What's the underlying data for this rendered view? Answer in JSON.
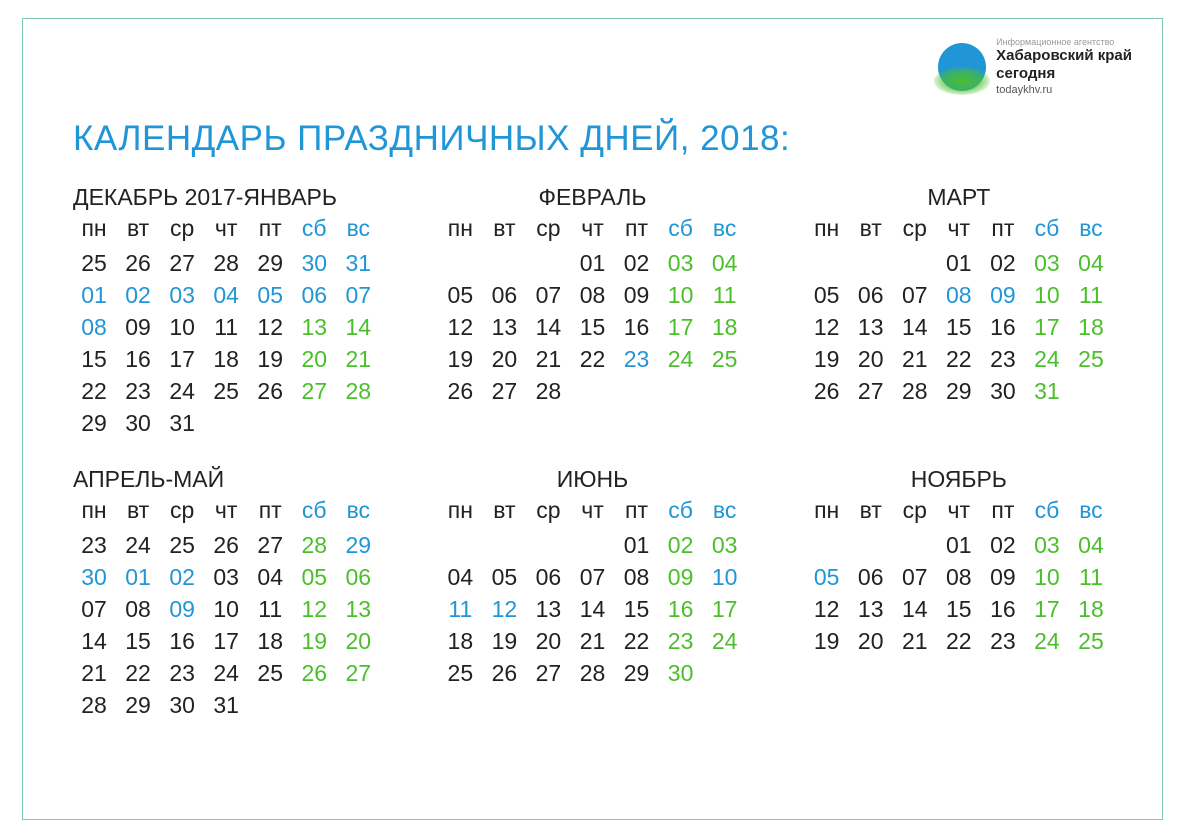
{
  "logo": {
    "agency": "Информационное агентство",
    "name_line1": "Хабаровский край",
    "name_line2": "сегодня",
    "url": "todaykhv.ru"
  },
  "title": "КАЛЕНДАРЬ ПРАЗДНИЧНЫХ ДНЕЙ, 2018:",
  "weekdays": [
    "пн",
    "вт",
    "ср",
    "чт",
    "пт",
    "сб",
    "вс"
  ],
  "colors": {
    "title": "#2196d6",
    "holiday": "#2196d6",
    "weekend": "#4bbf2b",
    "normal": "#222222",
    "border": "#7ec8b8",
    "background": "#ffffff"
  },
  "months": [
    {
      "name": "ДЕКАБРЬ 2017-ЯНВАРЬ",
      "align": "left",
      "cells": [
        {
          "v": "25",
          "t": "n"
        },
        {
          "v": "26",
          "t": "n"
        },
        {
          "v": "27",
          "t": "n"
        },
        {
          "v": "28",
          "t": "n"
        },
        {
          "v": "29",
          "t": "n"
        },
        {
          "v": "30",
          "t": "h"
        },
        {
          "v": "31",
          "t": "h"
        },
        {
          "v": "01",
          "t": "h"
        },
        {
          "v": "02",
          "t": "h"
        },
        {
          "v": "03",
          "t": "h"
        },
        {
          "v": "04",
          "t": "h"
        },
        {
          "v": "05",
          "t": "h"
        },
        {
          "v": "06",
          "t": "h"
        },
        {
          "v": "07",
          "t": "h"
        },
        {
          "v": "08",
          "t": "h"
        },
        {
          "v": "09",
          "t": "n"
        },
        {
          "v": "10",
          "t": "n"
        },
        {
          "v": "11",
          "t": "n"
        },
        {
          "v": "12",
          "t": "n"
        },
        {
          "v": "13",
          "t": "w"
        },
        {
          "v": "14",
          "t": "w"
        },
        {
          "v": "15",
          "t": "n"
        },
        {
          "v": "16",
          "t": "n"
        },
        {
          "v": "17",
          "t": "n"
        },
        {
          "v": "18",
          "t": "n"
        },
        {
          "v": "19",
          "t": "n"
        },
        {
          "v": "20",
          "t": "w"
        },
        {
          "v": "21",
          "t": "w"
        },
        {
          "v": "22",
          "t": "n"
        },
        {
          "v": "23",
          "t": "n"
        },
        {
          "v": "24",
          "t": "n"
        },
        {
          "v": "25",
          "t": "n"
        },
        {
          "v": "26",
          "t": "n"
        },
        {
          "v": "27",
          "t": "w"
        },
        {
          "v": "28",
          "t": "w"
        },
        {
          "v": "29",
          "t": "n"
        },
        {
          "v": "30",
          "t": "n"
        },
        {
          "v": "31",
          "t": "n"
        }
      ]
    },
    {
      "name": "ФЕВРАЛЬ",
      "align": "center",
      "cells": [
        {
          "v": "",
          "t": "e"
        },
        {
          "v": "",
          "t": "e"
        },
        {
          "v": "",
          "t": "e"
        },
        {
          "v": "01",
          "t": "n"
        },
        {
          "v": "02",
          "t": "n"
        },
        {
          "v": "03",
          "t": "w"
        },
        {
          "v": "04",
          "t": "w"
        },
        {
          "v": "05",
          "t": "n"
        },
        {
          "v": "06",
          "t": "n"
        },
        {
          "v": "07",
          "t": "n"
        },
        {
          "v": "08",
          "t": "n"
        },
        {
          "v": "09",
          "t": "n"
        },
        {
          "v": "10",
          "t": "w"
        },
        {
          "v": "11",
          "t": "w"
        },
        {
          "v": "12",
          "t": "n"
        },
        {
          "v": "13",
          "t": "n"
        },
        {
          "v": "14",
          "t": "n"
        },
        {
          "v": "15",
          "t": "n"
        },
        {
          "v": "16",
          "t": "n"
        },
        {
          "v": "17",
          "t": "w"
        },
        {
          "v": "18",
          "t": "w"
        },
        {
          "v": "19",
          "t": "n"
        },
        {
          "v": "20",
          "t": "n"
        },
        {
          "v": "21",
          "t": "n"
        },
        {
          "v": "22",
          "t": "n"
        },
        {
          "v": "23",
          "t": "h"
        },
        {
          "v": "24",
          "t": "w"
        },
        {
          "v": "25",
          "t": "w"
        },
        {
          "v": "26",
          "t": "n"
        },
        {
          "v": "27",
          "t": "n"
        },
        {
          "v": "28",
          "t": "n"
        }
      ]
    },
    {
      "name": "МАРТ",
      "align": "center",
      "cells": [
        {
          "v": "",
          "t": "e"
        },
        {
          "v": "",
          "t": "e"
        },
        {
          "v": "",
          "t": "e"
        },
        {
          "v": "01",
          "t": "n"
        },
        {
          "v": "02",
          "t": "n"
        },
        {
          "v": "03",
          "t": "w"
        },
        {
          "v": "04",
          "t": "w"
        },
        {
          "v": "05",
          "t": "n"
        },
        {
          "v": "06",
          "t": "n"
        },
        {
          "v": "07",
          "t": "n"
        },
        {
          "v": "08",
          "t": "h"
        },
        {
          "v": "09",
          "t": "h"
        },
        {
          "v": "10",
          "t": "w"
        },
        {
          "v": "11",
          "t": "w"
        },
        {
          "v": "12",
          "t": "n"
        },
        {
          "v": "13",
          "t": "n"
        },
        {
          "v": "14",
          "t": "n"
        },
        {
          "v": "15",
          "t": "n"
        },
        {
          "v": "16",
          "t": "n"
        },
        {
          "v": "17",
          "t": "w"
        },
        {
          "v": "18",
          "t": "w"
        },
        {
          "v": "19",
          "t": "n"
        },
        {
          "v": "20",
          "t": "n"
        },
        {
          "v": "21",
          "t": "n"
        },
        {
          "v": "22",
          "t": "n"
        },
        {
          "v": "23",
          "t": "n"
        },
        {
          "v": "24",
          "t": "w"
        },
        {
          "v": "25",
          "t": "w"
        },
        {
          "v": "26",
          "t": "n"
        },
        {
          "v": "27",
          "t": "n"
        },
        {
          "v": "28",
          "t": "n"
        },
        {
          "v": "29",
          "t": "n"
        },
        {
          "v": "30",
          "t": "n"
        },
        {
          "v": "31",
          "t": "w"
        }
      ]
    },
    {
      "name": "АПРЕЛЬ-МАЙ",
      "align": "left",
      "cells": [
        {
          "v": "23",
          "t": "n"
        },
        {
          "v": "24",
          "t": "n"
        },
        {
          "v": "25",
          "t": "n"
        },
        {
          "v": "26",
          "t": "n"
        },
        {
          "v": "27",
          "t": "n"
        },
        {
          "v": "28",
          "t": "w"
        },
        {
          "v": "29",
          "t": "h"
        },
        {
          "v": "30",
          "t": "h"
        },
        {
          "v": "01",
          "t": "h"
        },
        {
          "v": "02",
          "t": "h"
        },
        {
          "v": "03",
          "t": "n"
        },
        {
          "v": "04",
          "t": "n"
        },
        {
          "v": "05",
          "t": "w"
        },
        {
          "v": "06",
          "t": "w"
        },
        {
          "v": "07",
          "t": "n"
        },
        {
          "v": "08",
          "t": "n"
        },
        {
          "v": "09",
          "t": "h"
        },
        {
          "v": "10",
          "t": "n"
        },
        {
          "v": "11",
          "t": "n"
        },
        {
          "v": "12",
          "t": "w"
        },
        {
          "v": "13",
          "t": "w"
        },
        {
          "v": "14",
          "t": "n"
        },
        {
          "v": "15",
          "t": "n"
        },
        {
          "v": "16",
          "t": "n"
        },
        {
          "v": "17",
          "t": "n"
        },
        {
          "v": "18",
          "t": "n"
        },
        {
          "v": "19",
          "t": "w"
        },
        {
          "v": "20",
          "t": "w"
        },
        {
          "v": "21",
          "t": "n"
        },
        {
          "v": "22",
          "t": "n"
        },
        {
          "v": "23",
          "t": "n"
        },
        {
          "v": "24",
          "t": "n"
        },
        {
          "v": "25",
          "t": "n"
        },
        {
          "v": "26",
          "t": "w"
        },
        {
          "v": "27",
          "t": "w"
        },
        {
          "v": "28",
          "t": "n"
        },
        {
          "v": "29",
          "t": "n"
        },
        {
          "v": "30",
          "t": "n"
        },
        {
          "v": "31",
          "t": "n"
        }
      ]
    },
    {
      "name": "ИЮНЬ",
      "align": "center",
      "cells": [
        {
          "v": "",
          "t": "e"
        },
        {
          "v": "",
          "t": "e"
        },
        {
          "v": "",
          "t": "e"
        },
        {
          "v": "",
          "t": "e"
        },
        {
          "v": "01",
          "t": "n"
        },
        {
          "v": "02",
          "t": "w"
        },
        {
          "v": "03",
          "t": "w"
        },
        {
          "v": "04",
          "t": "n"
        },
        {
          "v": "05",
          "t": "n"
        },
        {
          "v": "06",
          "t": "n"
        },
        {
          "v": "07",
          "t": "n"
        },
        {
          "v": "08",
          "t": "n"
        },
        {
          "v": "09",
          "t": "w"
        },
        {
          "v": "10",
          "t": "h"
        },
        {
          "v": "11",
          "t": "h"
        },
        {
          "v": "12",
          "t": "h"
        },
        {
          "v": "13",
          "t": "n"
        },
        {
          "v": "14",
          "t": "n"
        },
        {
          "v": "15",
          "t": "n"
        },
        {
          "v": "16",
          "t": "w"
        },
        {
          "v": "17",
          "t": "w"
        },
        {
          "v": "18",
          "t": "n"
        },
        {
          "v": "19",
          "t": "n"
        },
        {
          "v": "20",
          "t": "n"
        },
        {
          "v": "21",
          "t": "n"
        },
        {
          "v": "22",
          "t": "n"
        },
        {
          "v": "23",
          "t": "w"
        },
        {
          "v": "24",
          "t": "w"
        },
        {
          "v": "25",
          "t": "n"
        },
        {
          "v": "26",
          "t": "n"
        },
        {
          "v": "27",
          "t": "n"
        },
        {
          "v": "28",
          "t": "n"
        },
        {
          "v": "29",
          "t": "n"
        },
        {
          "v": "30",
          "t": "w"
        }
      ]
    },
    {
      "name": "НОЯБРЬ",
      "align": "center",
      "cells": [
        {
          "v": "",
          "t": "e"
        },
        {
          "v": "",
          "t": "e"
        },
        {
          "v": "",
          "t": "e"
        },
        {
          "v": "01",
          "t": "n"
        },
        {
          "v": "02",
          "t": "n"
        },
        {
          "v": "03",
          "t": "w"
        },
        {
          "v": "04",
          "t": "w"
        },
        {
          "v": "05",
          "t": "h"
        },
        {
          "v": "06",
          "t": "n"
        },
        {
          "v": "07",
          "t": "n"
        },
        {
          "v": "08",
          "t": "n"
        },
        {
          "v": "09",
          "t": "n"
        },
        {
          "v": "10",
          "t": "w"
        },
        {
          "v": "11",
          "t": "w"
        },
        {
          "v": "12",
          "t": "n"
        },
        {
          "v": "13",
          "t": "n"
        },
        {
          "v": "14",
          "t": "n"
        },
        {
          "v": "15",
          "t": "n"
        },
        {
          "v": "16",
          "t": "n"
        },
        {
          "v": "17",
          "t": "w"
        },
        {
          "v": "18",
          "t": "w"
        },
        {
          "v": "19",
          "t": "n"
        },
        {
          "v": "20",
          "t": "n"
        },
        {
          "v": "21",
          "t": "n"
        },
        {
          "v": "22",
          "t": "n"
        },
        {
          "v": "23",
          "t": "n"
        },
        {
          "v": "24",
          "t": "w"
        },
        {
          "v": "25",
          "t": "w"
        }
      ]
    }
  ]
}
